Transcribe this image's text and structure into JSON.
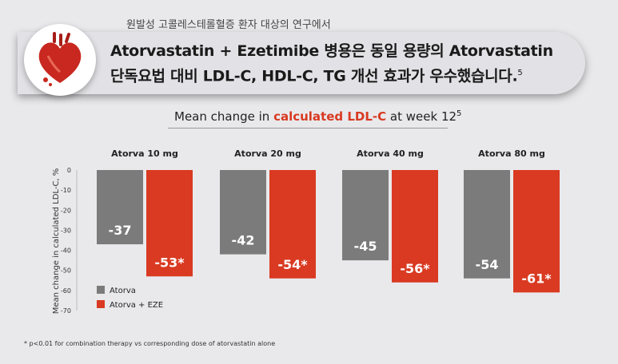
{
  "header": {
    "subtitle": "원발성 고콜레스테롤혈증 환자 대상의 연구에서",
    "headline_line1": "Atorvastatin + Ezetimibe 병용은 동일 용량의 Atorvastatin",
    "headline_line2": "단독요법 대비 LDL-C, HDL-C, TG 개선 효과가 우수했습니다.",
    "headline_ref": "5"
  },
  "chart_title": {
    "prefix": "Mean change in ",
    "highlight": "calculated LDL-C",
    "suffix": " at week 12",
    "ref": "5"
  },
  "chart_data": {
    "type": "bar",
    "categories": [
      "Atorva 10 mg",
      "Atorva 20 mg",
      "Atorva 40 mg",
      "Atorva 80 mg"
    ],
    "series": [
      {
        "name": "Atorva",
        "values": [
          -37,
          -42,
          -45,
          -54
        ],
        "labels": [
          "-37",
          "-42",
          "-45",
          "-54"
        ],
        "color": "#7b7b7b"
      },
      {
        "name": "Atorva + EZE",
        "values": [
          -53,
          -54,
          -56,
          -61
        ],
        "labels": [
          "-53*",
          "-54*",
          "-56*",
          "-61*"
        ],
        "color": "#d93a21"
      }
    ],
    "ylabel": "Mean change in calculated LDL-C, %",
    "ylim": [
      -70,
      0
    ],
    "yticks": [
      "0",
      "-10",
      "-20",
      "-30",
      "-40",
      "-50",
      "-60",
      "-70"
    ],
    "legend_position": "bottom-left"
  },
  "footnote": "* p<0.01 for combination therapy vs corresponding dose of atorvastatin alone"
}
